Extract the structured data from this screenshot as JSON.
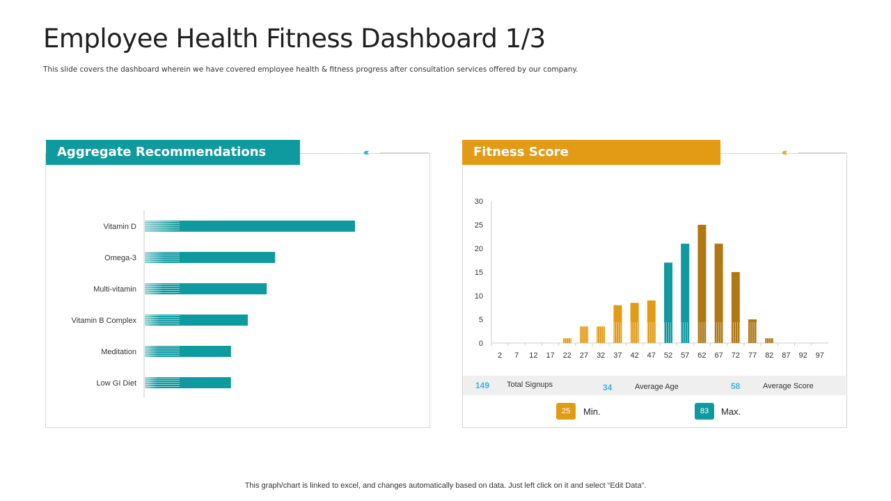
{
  "page": {
    "title": "Employee Health Fitness Dashboard 1/3",
    "subtitle": "This slide covers the dashboard wherein we have covered employee health & fitness progress after consultation services offered by our company.",
    "footer": "This graph/chart is linked to excel, and changes automatically based on data. Just left click on it and select “Edit Data”."
  },
  "colors": {
    "teal": "#0f9aa0",
    "orange": "#e39b16",
    "dark_gold": "#b07815",
    "stat_blue": "#3fb2e2"
  },
  "left_panel": {
    "header": "Aggregate Recommendations",
    "arrow_glyph": "‹‹‹‹"
  },
  "right_panel": {
    "header": "Fitness Score",
    "arrow_glyph": "‹‹‹‹",
    "stats": {
      "total_signups_value": "149",
      "total_signups_label": "Total Signups",
      "average_age_value": "34",
      "average_age_label": "Average Age",
      "average_score_value": "58",
      "average_score_label": "Average Score"
    },
    "min": {
      "value": "25",
      "label": "Min."
    },
    "max": {
      "value": "83",
      "label": "Max."
    }
  },
  "chart_data": [
    {
      "type": "bar",
      "orientation": "horizontal",
      "categories": [
        "Vitamin D",
        "Omega-3",
        "Multi-vitamin",
        "Vitamin B Complex",
        "Meditation",
        "Low GI Diet"
      ],
      "values": [
        100,
        62,
        58,
        49,
        41,
        41
      ],
      "xlim": [
        0,
        100
      ],
      "grid": false
    },
    {
      "type": "bar",
      "categories": [
        "2",
        "7",
        "12",
        "17",
        "22",
        "27",
        "32",
        "37",
        "42",
        "47",
        "52",
        "57",
        "62",
        "67",
        "72",
        "77",
        "82",
        "87",
        "92",
        "97"
      ],
      "values": [
        0,
        0,
        0,
        0,
        1,
        3.5,
        3.5,
        8,
        8.5,
        9,
        17,
        21,
        25,
        21,
        15,
        5,
        1,
        0,
        0,
        0
      ],
      "bar_colors": [
        "orange",
        "orange",
        "orange",
        "orange",
        "orange",
        "orange",
        "orange",
        "orange",
        "orange",
        "orange",
        "teal",
        "teal",
        "dark_gold",
        "dark_gold",
        "dark_gold",
        "dark_gold",
        "dark_gold",
        "dark_gold",
        "dark_gold",
        "dark_gold"
      ],
      "yticks": [
        "0",
        "5",
        "10",
        "15",
        "20",
        "25",
        "30"
      ],
      "ylim": [
        0,
        30
      ],
      "grid": false
    }
  ]
}
